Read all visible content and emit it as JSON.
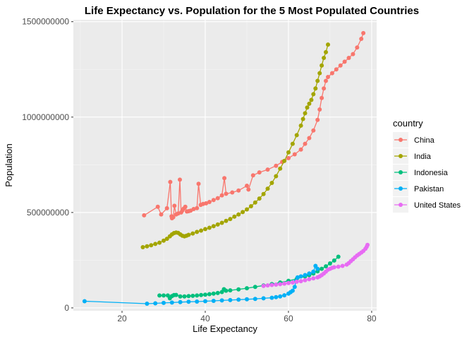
{
  "chart_data": {
    "type": "line",
    "title": "Life Expectancy vs. Population for the 5 Most Populated Countries",
    "xlabel": "Life Expectancy",
    "ylabel": "Population",
    "xlim": [
      8.3,
      81.2
    ],
    "ylim": [
      -15000000,
      1510000000
    ],
    "x_ticks": [
      20,
      40,
      60,
      80
    ],
    "x_tick_labels": [
      "20",
      "40",
      "60",
      "80"
    ],
    "y_ticks": [
      0,
      500000000,
      1000000000,
      1500000000
    ],
    "y_tick_labels": [
      "0",
      "500000000",
      "1000000000",
      "1500000000"
    ],
    "grid": true,
    "legend_title": "country",
    "legend_position": "right",
    "series": [
      {
        "name": "China",
        "color": "#F8766D",
        "points": [
          [
            25.3,
            485000000
          ],
          [
            28.6,
            530000000
          ],
          [
            29.4,
            490000000
          ],
          [
            30.8,
            522000000
          ],
          [
            31.6,
            660000000
          ],
          [
            31.9,
            480000000
          ],
          [
            32.0,
            470000000
          ],
          [
            32.3,
            475000000
          ],
          [
            32.6,
            535000000
          ],
          [
            33.0,
            490000000
          ],
          [
            33.5,
            495000000
          ],
          [
            33.9,
            672000000
          ],
          [
            34.2,
            500000000
          ],
          [
            34.5,
            510000000
          ],
          [
            34.8,
            520000000
          ],
          [
            35.2,
            530000000
          ],
          [
            35.6,
            505000000
          ],
          [
            36.0,
            507000000
          ],
          [
            36.5,
            510000000
          ],
          [
            37.2,
            518000000
          ],
          [
            38.0,
            523000000
          ],
          [
            38.4,
            650000000
          ],
          [
            38.9,
            540000000
          ],
          [
            39.5,
            545000000
          ],
          [
            40.2,
            548000000
          ],
          [
            41.0,
            555000000
          ],
          [
            42.0,
            565000000
          ],
          [
            43.0,
            575000000
          ],
          [
            44.0,
            590000000
          ],
          [
            44.6,
            680000000
          ],
          [
            45.0,
            598000000
          ],
          [
            46.5,
            605000000
          ],
          [
            48.0,
            615000000
          ],
          [
            50.0,
            640000000
          ],
          [
            50.4,
            620000000
          ],
          [
            51.5,
            695000000
          ],
          [
            53.0,
            710000000
          ],
          [
            55.0,
            725000000
          ],
          [
            57.0,
            745000000
          ],
          [
            58.5,
            765000000
          ],
          [
            60.0,
            785000000
          ],
          [
            61.5,
            805000000
          ],
          [
            63.0,
            830000000
          ],
          [
            64.0,
            860000000
          ],
          [
            65.0,
            890000000
          ],
          [
            66.0,
            930000000
          ],
          [
            67.0,
            985000000
          ],
          [
            67.5,
            1040000000
          ],
          [
            68.0,
            1100000000
          ],
          [
            68.5,
            1150000000
          ],
          [
            69.0,
            1190000000
          ],
          [
            69.5,
            1210000000
          ],
          [
            70.5,
            1230000000
          ],
          [
            71.5,
            1250000000
          ],
          [
            72.5,
            1270000000
          ],
          [
            73.5,
            1290000000
          ],
          [
            74.5,
            1310000000
          ],
          [
            75.5,
            1330000000
          ],
          [
            76.5,
            1365000000
          ],
          [
            77.5,
            1410000000
          ],
          [
            78.0,
            1440000000
          ]
        ]
      },
      {
        "name": "India",
        "color": "#A3A500",
        "points": [
          [
            25.0,
            318000000
          ],
          [
            26.0,
            323000000
          ],
          [
            27.0,
            328000000
          ],
          [
            28.0,
            335000000
          ],
          [
            29.0,
            342000000
          ],
          [
            30.0,
            352000000
          ],
          [
            30.8,
            362000000
          ],
          [
            31.5,
            375000000
          ],
          [
            32.0,
            385000000
          ],
          [
            32.5,
            392000000
          ],
          [
            33.0,
            395000000
          ],
          [
            33.5,
            393000000
          ],
          [
            34.0,
            385000000
          ],
          [
            34.5,
            378000000
          ],
          [
            35.0,
            375000000
          ],
          [
            35.5,
            378000000
          ],
          [
            36.0,
            383000000
          ],
          [
            37.0,
            390000000
          ],
          [
            38.0,
            398000000
          ],
          [
            39.0,
            405000000
          ],
          [
            40.0,
            413000000
          ],
          [
            41.0,
            420000000
          ],
          [
            42.0,
            428000000
          ],
          [
            43.0,
            437000000
          ],
          [
            44.0,
            446000000
          ],
          [
            45.0,
            456000000
          ],
          [
            46.0,
            466000000
          ],
          [
            47.0,
            478000000
          ],
          [
            48.0,
            490000000
          ],
          [
            49.0,
            502000000
          ],
          [
            50.0,
            516000000
          ],
          [
            51.0,
            533000000
          ],
          [
            52.0,
            552000000
          ],
          [
            53.0,
            573000000
          ],
          [
            54.0,
            597000000
          ],
          [
            55.0,
            625000000
          ],
          [
            56.0,
            655000000
          ],
          [
            57.0,
            690000000
          ],
          [
            58.0,
            730000000
          ],
          [
            59.0,
            770000000
          ],
          [
            60.0,
            815000000
          ],
          [
            61.0,
            860000000
          ],
          [
            62.0,
            905000000
          ],
          [
            63.0,
            955000000
          ],
          [
            63.5,
            990000000
          ],
          [
            64.0,
            1020000000
          ],
          [
            64.5,
            1050000000
          ],
          [
            65.0,
            1070000000
          ],
          [
            65.5,
            1090000000
          ],
          [
            66.0,
            1120000000
          ],
          [
            66.5,
            1150000000
          ],
          [
            67.0,
            1190000000
          ],
          [
            67.5,
            1230000000
          ],
          [
            68.0,
            1270000000
          ],
          [
            68.5,
            1310000000
          ],
          [
            69.0,
            1340000000
          ],
          [
            69.5,
            1380000000
          ]
        ]
      },
      {
        "name": "Indonesia",
        "color": "#00BF7D",
        "points": [
          [
            29.0,
            65000000
          ],
          [
            30.0,
            65000000
          ],
          [
            31.0,
            65000000
          ],
          [
            31.5,
            50000000
          ],
          [
            32.0,
            62000000
          ],
          [
            32.5,
            67000000
          ],
          [
            33.0,
            68000000
          ],
          [
            34.0,
            60000000
          ],
          [
            35.0,
            60000000
          ],
          [
            36.0,
            62000000
          ],
          [
            37.0,
            63000000
          ],
          [
            38.0,
            65000000
          ],
          [
            39.0,
            67000000
          ],
          [
            40.0,
            69000000
          ],
          [
            41.0,
            72000000
          ],
          [
            42.0,
            75000000
          ],
          [
            43.0,
            78000000
          ],
          [
            44.0,
            83000000
          ],
          [
            44.5,
            98000000
          ],
          [
            45.0,
            90000000
          ],
          [
            46.0,
            92000000
          ],
          [
            48.0,
            97000000
          ],
          [
            50.0,
            103000000
          ],
          [
            52.0,
            110000000
          ],
          [
            54.0,
            117000000
          ],
          [
            56.0,
            125000000
          ],
          [
            58.0,
            133000000
          ],
          [
            60.0,
            142000000
          ],
          [
            62.0,
            152000000
          ],
          [
            64.0,
            165000000
          ],
          [
            65.0,
            172000000
          ],
          [
            66.0,
            180000000
          ],
          [
            67.0,
            192000000
          ],
          [
            68.0,
            205000000
          ],
          [
            69.0,
            218000000
          ],
          [
            70.0,
            233000000
          ],
          [
            71.0,
            248000000
          ],
          [
            72.0,
            268000000
          ]
        ]
      },
      {
        "name": "Pakistan",
        "color": "#00B0F6",
        "points": [
          [
            11.0,
            35000000
          ],
          [
            26.0,
            22000000
          ],
          [
            28.0,
            24000000
          ],
          [
            30.0,
            26000000
          ],
          [
            32.0,
            28000000
          ],
          [
            34.0,
            30000000
          ],
          [
            36.0,
            32000000
          ],
          [
            38.0,
            33000000
          ],
          [
            40.0,
            35000000
          ],
          [
            42.0,
            37000000
          ],
          [
            44.0,
            39000000
          ],
          [
            46.0,
            41000000
          ],
          [
            48.0,
            43000000
          ],
          [
            50.0,
            45000000
          ],
          [
            52.0,
            47000000
          ],
          [
            54.0,
            50000000
          ],
          [
            56.0,
            53000000
          ],
          [
            57.0,
            56000000
          ],
          [
            58.0,
            60000000
          ],
          [
            59.0,
            66000000
          ],
          [
            60.0,
            75000000
          ],
          [
            60.5,
            82000000
          ],
          [
            61.0,
            90000000
          ],
          [
            61.5,
            110000000
          ],
          [
            61.8,
            140000000
          ],
          [
            62.2,
            160000000
          ],
          [
            63.0,
            165000000
          ],
          [
            64.0,
            172000000
          ],
          [
            65.0,
            180000000
          ],
          [
            66.0,
            190000000
          ],
          [
            66.5,
            220000000
          ],
          [
            67.0,
            205000000
          ]
        ]
      },
      {
        "name": "United States",
        "color": "#E76BF3",
        "points": [
          [
            54.0,
            115000000
          ],
          [
            55.0,
            118000000
          ],
          [
            56.0,
            120000000
          ],
          [
            57.0,
            122000000
          ],
          [
            58.0,
            124000000
          ],
          [
            59.0,
            127000000
          ],
          [
            60.0,
            130000000
          ],
          [
            61.0,
            133000000
          ],
          [
            62.0,
            137000000
          ],
          [
            63.0,
            140000000
          ],
          [
            64.0,
            145000000
          ],
          [
            65.0,
            150000000
          ],
          [
            66.0,
            155000000
          ],
          [
            67.0,
            160000000
          ],
          [
            67.5,
            165000000
          ],
          [
            68.0,
            172000000
          ],
          [
            68.5,
            180000000
          ],
          [
            69.0,
            190000000
          ],
          [
            69.5,
            200000000
          ],
          [
            70.0,
            205000000
          ],
          [
            70.5,
            210000000
          ],
          [
            71.0,
            213000000
          ],
          [
            72.0,
            216000000
          ],
          [
            73.0,
            220000000
          ],
          [
            74.0,
            227000000
          ],
          [
            74.5,
            235000000
          ],
          [
            75.0,
            245000000
          ],
          [
            75.5,
            255000000
          ],
          [
            76.0,
            265000000
          ],
          [
            76.5,
            275000000
          ],
          [
            77.0,
            282000000
          ],
          [
            77.5,
            290000000
          ],
          [
            78.0,
            298000000
          ],
          [
            78.5,
            310000000
          ],
          [
            78.8,
            320000000
          ],
          [
            79.0,
            330000000
          ]
        ]
      }
    ]
  }
}
